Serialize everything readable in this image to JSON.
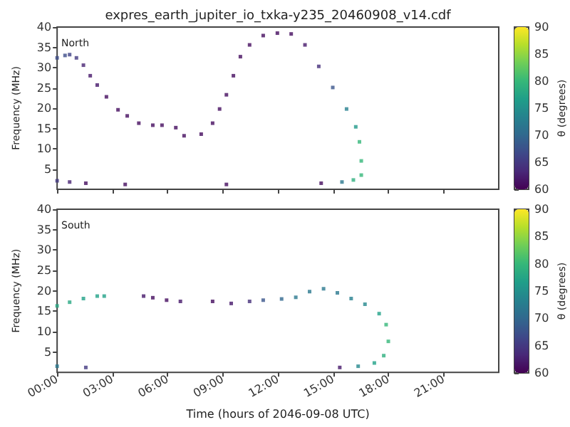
{
  "chart_data": [
    {
      "type": "scatter",
      "title": "expres_earth_jupiter_io_txka-y235_20460908_v14.cdf",
      "annotations": [
        "North"
      ],
      "ylabel": "Frequency (MHz)",
      "clabel": "θ (degrees)",
      "marker": "square",
      "grid": false,
      "tick_labels": "y",
      "x": [
        0,
        0.43,
        0.68,
        1.05,
        1.43,
        1.8,
        2.18,
        2.68,
        3.31,
        3.81,
        4.44,
        5.2,
        5.7,
        6.45,
        6.9,
        7.83,
        8.45,
        8.83,
        9.2,
        9.58,
        9.96,
        10.46,
        11.2,
        11.97,
        12.72,
        13.47,
        14.22,
        14.98,
        15.73,
        16.23,
        16.43,
        16.53,
        16.53,
        16.1,
        15.48,
        0,
        0.68,
        1.56,
        3.7,
        9.2,
        14.35
      ],
      "values": [
        32.4,
        33,
        33.2,
        32.4,
        30.6,
        28,
        25.7,
        22.8,
        19.6,
        18.1,
        16.3,
        15.8,
        15.8,
        15.2,
        13.2,
        13.6,
        16.3,
        19.8,
        23.3,
        28,
        32.7,
        35.6,
        37.9,
        38.5,
        38.3,
        35.6,
        30.3,
        25.1,
        19.8,
        15.4,
        11.7,
        7,
        3.5,
        2.3,
        1.8,
        2.1,
        1.8,
        1.5,
        1.2,
        1.2,
        1.5
      ],
      "cvalues": [
        67,
        67,
        66,
        65,
        63,
        62,
        62,
        61,
        61,
        61,
        61,
        61,
        61,
        61,
        61,
        61,
        61,
        61,
        61,
        61,
        61,
        61,
        61,
        61,
        61,
        62,
        64,
        68,
        73,
        76,
        80,
        80,
        80,
        79,
        72,
        65,
        63,
        61,
        61,
        61,
        61
      ],
      "xlim": [
        0,
        24
      ],
      "xticks": [
        0,
        3,
        6,
        9,
        12,
        15,
        18,
        21
      ],
      "ylim": [
        0,
        40
      ],
      "yticks": [
        5,
        10,
        15,
        20,
        25,
        30,
        35,
        40
      ],
      "clim": [
        60,
        90
      ],
      "cticks": [
        60,
        65,
        70,
        75,
        80,
        85,
        90
      ]
    },
    {
      "type": "scatter",
      "annotations": [
        "South"
      ],
      "xlabel": "Time (hours of 2046-09-08 UTC)",
      "ylabel": "Frequency (MHz)",
      "clabel": "θ (degrees)",
      "marker": "square",
      "grid": false,
      "x": [
        0,
        0.68,
        1.43,
        2.18,
        2.56,
        4.7,
        5.2,
        5.95,
        6.7,
        8.45,
        9.46,
        10.46,
        11.2,
        12.2,
        12.97,
        13.72,
        14.48,
        15.23,
        15.98,
        16.73,
        17.5,
        17.88,
        18,
        17.75,
        17.24,
        16.36,
        15.36,
        0,
        1.56
      ],
      "values": [
        16.3,
        17.2,
        18.1,
        18.7,
        18.7,
        18.7,
        18.3,
        17.7,
        17.4,
        17.4,
        16.9,
        17.4,
        17.7,
        18,
        18.4,
        19.8,
        20.5,
        19.5,
        18.1,
        16.7,
        14.4,
        11.7,
        7.6,
        4.1,
        2.3,
        1.5,
        1.2,
        1.5,
        1.2
      ],
      "cvalues": [
        78,
        78,
        77,
        77,
        77,
        62,
        61,
        61,
        62,
        61,
        62,
        64,
        68,
        70,
        72,
        72,
        72,
        72,
        73,
        74,
        77,
        80,
        80,
        79,
        77,
        74,
        62,
        72,
        65
      ],
      "xlim": [
        0,
        24
      ],
      "xticks": [
        {
          "value": 0,
          "label": "00:00"
        },
        {
          "value": 3,
          "label": "03:00"
        },
        {
          "value": 6,
          "label": "06:00"
        },
        {
          "value": 9,
          "label": "09:00"
        },
        {
          "value": 12,
          "label": "12:00"
        },
        {
          "value": 15,
          "label": "15:00"
        },
        {
          "value": 18,
          "label": "18:00"
        },
        {
          "value": 21,
          "label": "21:00"
        }
      ],
      "ylim": [
        0,
        40
      ],
      "yticks": [
        5,
        10,
        15,
        20,
        25,
        30,
        35,
        40
      ],
      "clim": [
        60,
        90
      ],
      "cticks": [
        60,
        65,
        70,
        75,
        80,
        85,
        90
      ]
    }
  ]
}
